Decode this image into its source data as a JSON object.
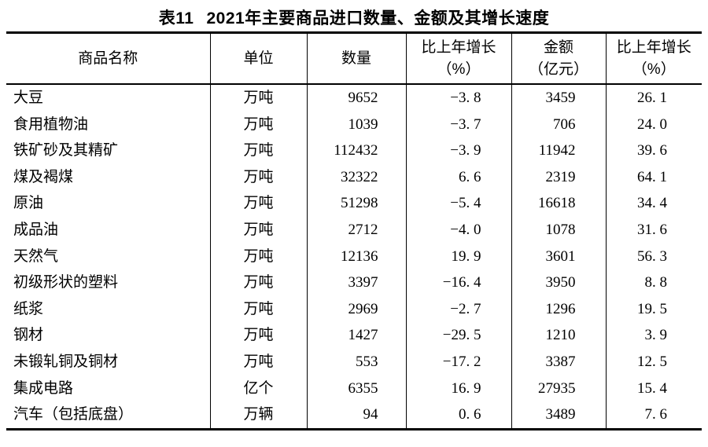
{
  "table": {
    "label": "表11",
    "title": "2021年主要商品进口数量、金额及其增长速度",
    "columns": [
      {
        "label": "商品名称"
      },
      {
        "label": "单位"
      },
      {
        "label": "数量"
      },
      {
        "label": "比上年增长\n（%）"
      },
      {
        "label": "金额\n（亿元）"
      },
      {
        "label": "比上年增长\n（%）"
      }
    ],
    "rows": [
      [
        "大豆",
        "万吨",
        "9652",
        "−3. 8",
        "3459",
        "26. 1"
      ],
      [
        "食用植物油",
        "万吨",
        "1039",
        "−3. 7",
        "706",
        "24. 0"
      ],
      [
        "铁矿砂及其精矿",
        "万吨",
        "112432",
        "−3. 9",
        "11942",
        "39. 6"
      ],
      [
        "煤及褐煤",
        "万吨",
        "32322",
        "6. 6",
        "2319",
        "64. 1"
      ],
      [
        "原油",
        "万吨",
        "51298",
        "−5. 4",
        "16618",
        "34. 4"
      ],
      [
        "成品油",
        "万吨",
        "2712",
        "−4. 0",
        "1078",
        "31. 6"
      ],
      [
        "天然气",
        "万吨",
        "12136",
        "19. 9",
        "3601",
        "56. 3"
      ],
      [
        "初级形状的塑料",
        "万吨",
        "3397",
        "−16. 4",
        "3950",
        "8. 8"
      ],
      [
        "纸浆",
        "万吨",
        "2969",
        "−2. 7",
        "1296",
        "19. 5"
      ],
      [
        "钢材",
        "万吨",
        "1427",
        "−29. 5",
        "1210",
        "3. 9"
      ],
      [
        "未锻轧铜及铜材",
        "万吨",
        "553",
        "−17. 2",
        "3387",
        "12. 5"
      ],
      [
        "集成电路",
        "亿个",
        "6355",
        "16. 9",
        "27935",
        "15. 4"
      ],
      [
        "汽车（包括底盘）",
        "万辆",
        "94",
        "0. 6",
        "3489",
        "7. 6"
      ]
    ],
    "colors": {
      "text": "#000000",
      "background": "#ffffff",
      "rule": "#000000"
    }
  }
}
